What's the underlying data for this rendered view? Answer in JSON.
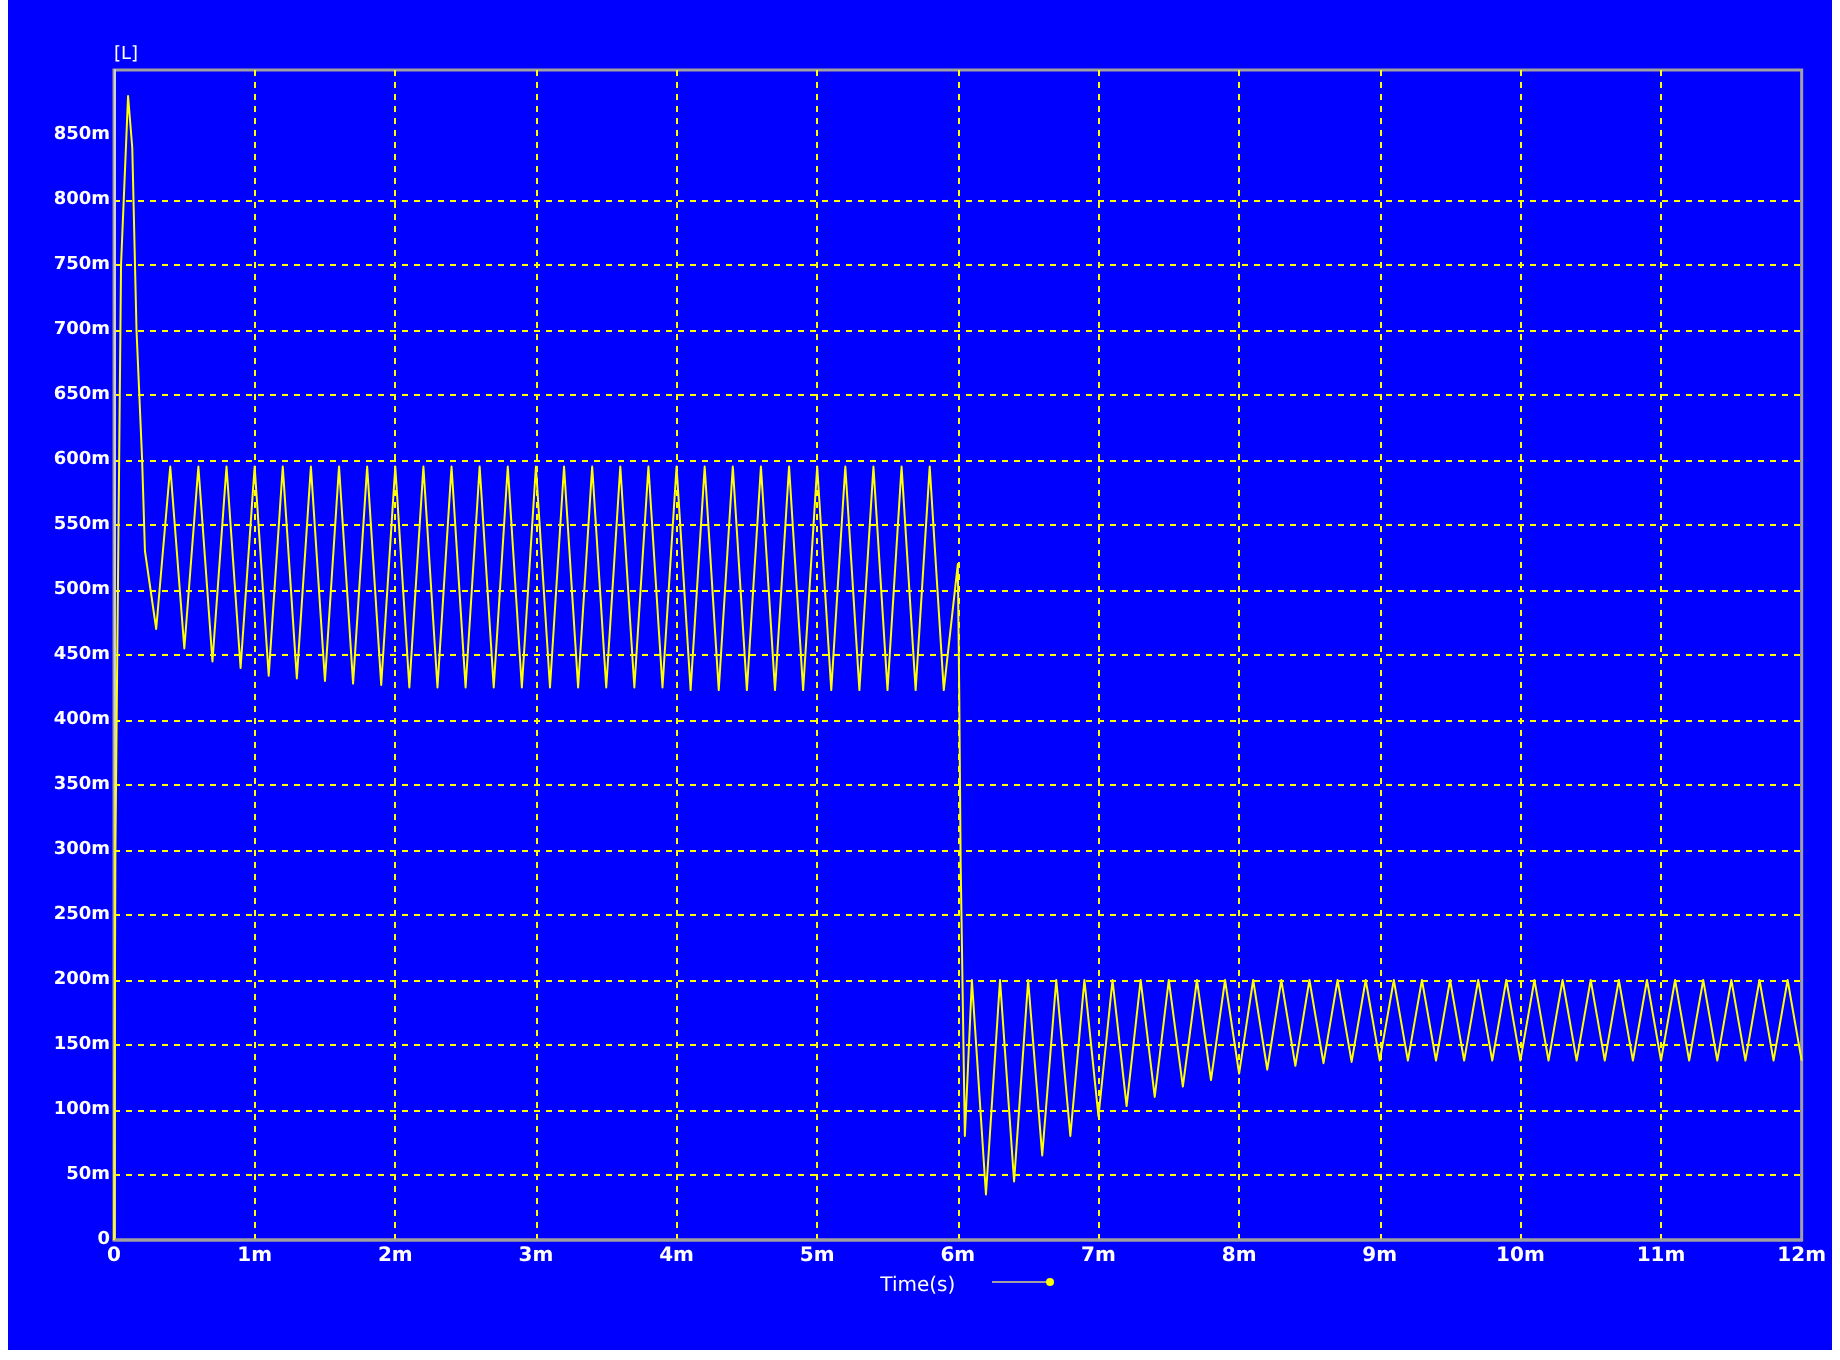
{
  "chart_data": {
    "type": "line",
    "xlabel": "Time(s)",
    "ylabel": "[L]",
    "xlim": [
      0,
      12
    ],
    "ylim": [
      0,
      900
    ],
    "xticks": [
      0,
      {
        "value": 1,
        "label": "1m"
      },
      {
        "value": 2,
        "label": "2m"
      },
      {
        "value": 3,
        "label": "3m"
      },
      {
        "value": 4,
        "label": "4m"
      },
      {
        "value": 5,
        "label": "5m"
      },
      {
        "value": 6,
        "label": "6m"
      },
      {
        "value": 7,
        "label": "7m"
      },
      {
        "value": 8,
        "label": "8m"
      },
      {
        "value": 9,
        "label": "9m"
      },
      {
        "value": 10,
        "label": "10m"
      },
      {
        "value": 11,
        "label": "11m"
      },
      {
        "value": 12,
        "label": "12m"
      }
    ],
    "yticks": [
      0,
      {
        "value": 50,
        "label": "50m"
      },
      {
        "value": 100,
        "label": "100m"
      },
      {
        "value": 150,
        "label": "150m"
      },
      {
        "value": 200,
        "label": "200m"
      },
      {
        "value": 250,
        "label": "250m"
      },
      {
        "value": 300,
        "label": "300m"
      },
      {
        "value": 350,
        "label": "350m"
      },
      {
        "value": 400,
        "label": "400m"
      },
      {
        "value": 450,
        "label": "450m"
      },
      {
        "value": 500,
        "label": "500m"
      },
      {
        "value": 550,
        "label": "550m"
      },
      {
        "value": 600,
        "label": "600m"
      },
      {
        "value": 650,
        "label": "650m"
      },
      {
        "value": 700,
        "label": "700m"
      },
      {
        "value": 750,
        "label": "750m"
      },
      {
        "value": 800,
        "label": "800m"
      },
      {
        "value": 850,
        "label": "850m"
      }
    ],
    "grid": true,
    "series": [
      {
        "color": "#ffff00",
        "x": [
          0,
          0.01,
          0.05,
          0.1,
          0.13,
          0.16,
          0.2,
          0.22,
          0.3,
          0.4,
          0.5,
          0.6,
          0.7,
          0.8,
          0.9,
          1,
          1.1,
          1.2,
          1.3,
          1.4,
          1.5,
          1.6,
          1.7,
          1.8,
          1.9,
          2,
          2.1,
          2.2,
          2.3,
          2.4,
          2.5,
          2.6,
          2.7,
          2.8,
          2.9,
          3,
          3.1,
          3.2,
          3.3,
          3.4,
          3.5,
          3.6,
          3.7,
          3.8,
          3.9,
          4,
          4.1,
          4.2,
          4.3,
          4.4,
          4.5,
          4.6,
          4.7,
          4.8,
          4.9,
          5,
          5.1,
          5.2,
          5.3,
          5.4,
          5.5,
          5.6,
          5.7,
          5.8,
          5.9,
          6,
          6.01,
          6.02,
          6.05,
          6.1,
          6.2,
          6.3,
          6.4,
          6.5,
          6.6,
          6.7,
          6.8,
          6.9,
          7,
          7.1,
          7.2,
          7.3,
          7.4,
          7.5,
          7.6,
          7.7,
          7.8,
          7.9,
          8,
          8.1,
          8.2,
          8.3,
          8.4,
          8.5,
          8.6,
          8.7,
          8.8,
          8.9,
          9,
          9.1,
          9.2,
          9.3,
          9.4,
          9.5,
          9.6,
          9.7,
          9.8,
          9.9,
          10,
          10.1,
          10.2,
          10.3,
          10.4,
          10.5,
          10.6,
          10.7,
          10.8,
          10.9,
          11,
          11.1,
          11.2,
          11.3,
          11.4,
          11.5,
          11.6,
          11.7,
          11.8,
          11.9,
          12
        ],
        "values": [
          0,
          300,
          750,
          880,
          840,
          700,
          600,
          530,
          470,
          595,
          455,
          595,
          445,
          595,
          440,
          595,
          434,
          595,
          432,
          595,
          430,
          595,
          428,
          595,
          427,
          595,
          425,
          595,
          425,
          595,
          425,
          595,
          425,
          595,
          425,
          595,
          425,
          595,
          425,
          595,
          425,
          595,
          425,
          595,
          425,
          595,
          423,
          595,
          423,
          595,
          423,
          595,
          423,
          595,
          423,
          595,
          423,
          595,
          423,
          595,
          423,
          595,
          423,
          595,
          423,
          520,
          420,
          290,
          80,
          200,
          35,
          200,
          45,
          200,
          65,
          200,
          80,
          200,
          95,
          200,
          103,
          200,
          110,
          200,
          118,
          200,
          123,
          200,
          128,
          200,
          131,
          200,
          134,
          200,
          136,
          200,
          137,
          200,
          138,
          200,
          138,
          200,
          138,
          200,
          138,
          200,
          138,
          200,
          138,
          200,
          138,
          200,
          138,
          200,
          138,
          200,
          138,
          200,
          138,
          200,
          138,
          200,
          138,
          200,
          138,
          200,
          138,
          200,
          138
        ]
      }
    ]
  }
}
